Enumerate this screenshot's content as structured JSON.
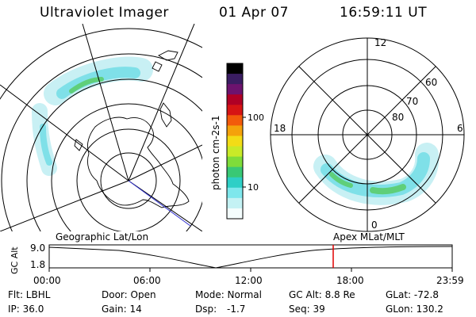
{
  "header": {
    "title": "Ultraviolet Imager",
    "date": "01 Apr 07",
    "time": "16:59:11 UT"
  },
  "colorbar": {
    "unit_label": "photon cm-2s-1",
    "ticks": [
      "100",
      "10"
    ],
    "colors": [
      "#000000",
      "#3a1d62",
      "#6d136e",
      "#b00025",
      "#d61414",
      "#f25a0b",
      "#f4a20b",
      "#f3dc16",
      "#c9ea28",
      "#7fdc3a",
      "#39c875",
      "#2ecfc6",
      "#7ee7ec",
      "#c4f2f4",
      "#f4fdfd"
    ]
  },
  "left_map": {
    "label": "Geographic Lat/Lon"
  },
  "right_map": {
    "label": "Apex  MLat/MLT",
    "mlt_labels": [
      "12",
      "6",
      "0",
      "18"
    ],
    "mlat_labels": [
      "60",
      "70",
      "80"
    ]
  },
  "altitude_plot": {
    "y_axis_label": "GC Alt",
    "y_ticks": [
      "9.0",
      "1.8"
    ],
    "x_ticks": [
      "00:00",
      "06:00",
      "12:00",
      "18:00",
      "23:59"
    ]
  },
  "info": {
    "filter": "Flt: LBHL",
    "ip": "IP: 36.0",
    "door": "Door: Open",
    "gain": "Gain: 14",
    "mode": "Mode: Normal",
    "dsp_label": "Dsp:",
    "dsp_value": "-1.7",
    "gc_alt": "GC Alt: 8.8 Re",
    "seq": "Seq: 39",
    "glat": "GLat: -72.8",
    "glon": "GLon: 130.2"
  }
}
